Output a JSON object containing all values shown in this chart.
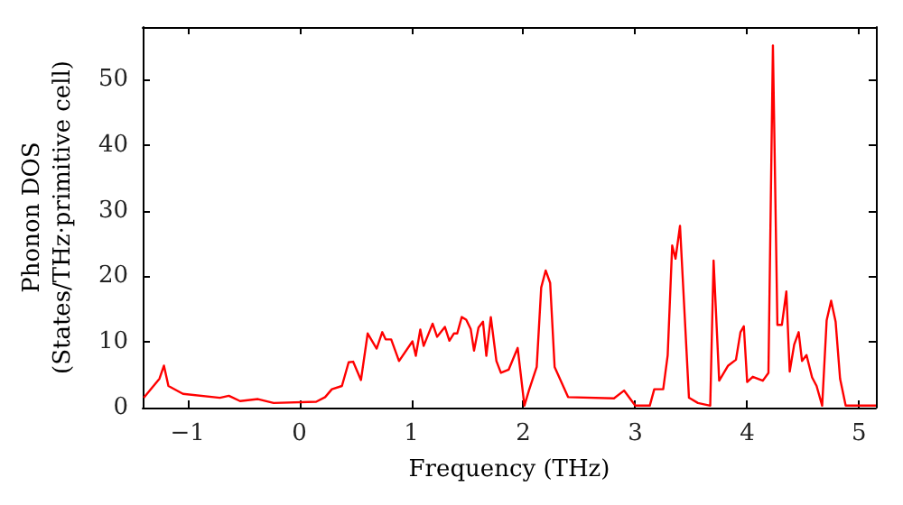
{
  "chart_data": {
    "type": "line",
    "xlabel": "Frequency (THz)",
    "ylabel": "Phonon DOS\n(States/THz·primitive cell)",
    "xlim": [
      -1.4,
      5.15
    ],
    "ylim": [
      0,
      58
    ],
    "xticks": [
      {
        "value": -1,
        "label": "−1"
      },
      0,
      1,
      2,
      3,
      4,
      5
    ],
    "yticks": [
      0,
      10,
      20,
      30,
      40,
      50
    ],
    "grid": false,
    "marker": "none",
    "line_style": "solid",
    "series": [
      {
        "color": "#ff0000",
        "x": [
          -1.39,
          -1.25,
          -1.21,
          -1.17,
          -1.04,
          -0.71,
          -0.63,
          -0.53,
          -0.37,
          -0.23,
          0.15,
          0.23,
          0.29,
          0.38,
          0.44,
          0.48,
          0.55,
          0.61,
          0.69,
          0.74,
          0.77,
          0.82,
          0.89,
          1.01,
          1.04,
          1.08,
          1.11,
          1.19,
          1.23,
          1.3,
          1.34,
          1.38,
          1.41,
          1.45,
          1.49,
          1.53,
          1.56,
          1.6,
          1.64,
          1.67,
          1.71,
          1.76,
          1.8,
          1.87,
          1.95,
          2.01,
          2.05,
          2.12,
          2.16,
          2.2,
          2.24,
          2.28,
          2.4,
          2.81,
          2.9,
          3.0,
          3.13,
          3.17,
          3.25,
          3.29,
          3.33,
          3.36,
          3.4,
          3.48,
          3.56,
          3.67,
          3.7,
          3.75,
          3.83,
          3.9,
          3.94,
          3.97,
          4.0,
          4.05,
          4.14,
          4.19,
          4.23,
          4.27,
          4.31,
          4.35,
          4.38,
          4.42,
          4.46,
          4.49,
          4.53,
          4.58,
          4.62,
          4.67,
          4.71,
          4.75,
          4.79,
          4.83,
          4.88,
          5.15
        ],
        "values": [
          1.5,
          4.4,
          6.4,
          3.3,
          2.1,
          1.5,
          1.8,
          1.0,
          1.3,
          0.7,
          0.9,
          1.6,
          2.8,
          3.3,
          6.9,
          7.0,
          4.2,
          11.3,
          9.0,
          11.5,
          10.4,
          10.4,
          7.1,
          10.1,
          7.9,
          11.9,
          9.4,
          12.8,
          10.8,
          12.3,
          10.2,
          11.3,
          11.3,
          13.8,
          13.4,
          12.0,
          8.7,
          12.2,
          13.1,
          7.9,
          13.8,
          7.1,
          5.3,
          5.8,
          9.1,
          0.3,
          2.6,
          6.2,
          18.3,
          20.9,
          19.0,
          6.2,
          1.6,
          1.4,
          2.6,
          0.3,
          0.3,
          2.8,
          2.8,
          8.0,
          24.7,
          22.7,
          27.7,
          1.5,
          0.7,
          0.3,
          22.4,
          4.1,
          6.4,
          7.3,
          11.5,
          12.4,
          3.9,
          4.7,
          4.1,
          5.3,
          55.2,
          12.6,
          12.6,
          17.7,
          5.5,
          9.6,
          11.5,
          7.1,
          8.0,
          4.6,
          3.3,
          0.3,
          13.3,
          16.3,
          13.1,
          4.4,
          0.3,
          0.3
        ]
      }
    ]
  }
}
